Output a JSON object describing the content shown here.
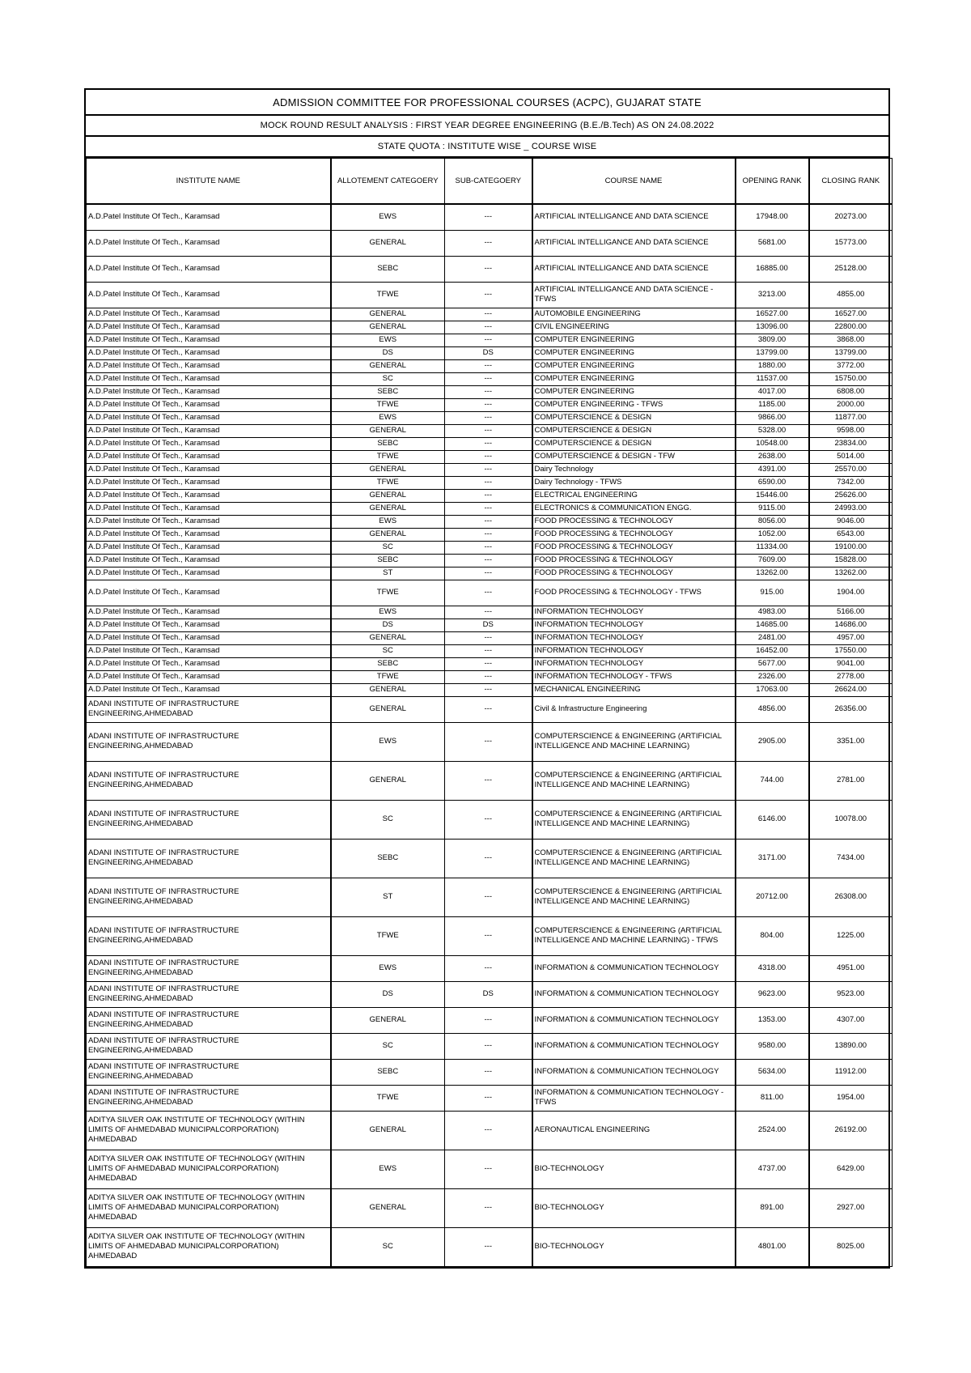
{
  "header": {
    "title": "ADMISSION COMMITTEE FOR PROFESSIONAL COURSES (ACPC), GUJARAT STATE",
    "subtitle": "MOCK ROUND RESULT ANALYSIS : FIRST YEAR DEGREE ENGINEERING (B.E./B.Tech) AS ON 24.08.2022",
    "quota": "STATE QUOTA : INSTITUTE WISE _ COURSE WISE"
  },
  "table": {
    "columns": [
      "INSTITUTE NAME",
      "ALLOTEMENT CATEGOERY",
      "SUB-CATEGOERY",
      "COURSE NAME",
      "OPENING RANK",
      "CLOSING RANK"
    ],
    "rows": [
      {
        "institute": "A.D.Patel Institute Of Tech., Karamsad",
        "category": "EWS",
        "sub": "---",
        "course": "ARTIFICIAL INTELLIGANCE AND DATA SCIENCE",
        "opening": "17948.00",
        "closing": "20273.00"
      },
      {
        "institute": "A.D.Patel Institute Of Tech., Karamsad",
        "category": "GENERAL",
        "sub": "---",
        "course": "ARTIFICIAL INTELLIGANCE AND DATA SCIENCE",
        "opening": "5681.00",
        "closing": "15773.00"
      },
      {
        "institute": "A.D.Patel Institute Of Tech., Karamsad",
        "category": "SEBC",
        "sub": "---",
        "course": "ARTIFICIAL INTELLIGANCE AND DATA SCIENCE",
        "opening": "16885.00",
        "closing": "25128.00"
      },
      {
        "institute": "A.D.Patel Institute Of Tech., Karamsad",
        "category": "TFWE",
        "sub": "---",
        "course": "ARTIFICIAL INTELLIGANCE AND DATA SCIENCE - TFWS",
        "opening": "3213.00",
        "closing": "4855.00"
      },
      {
        "institute": "A.D.Patel Institute Of Tech., Karamsad",
        "category": "GENERAL",
        "sub": "---",
        "course": "AUTOMOBILE ENGINEERING",
        "opening": "16527.00",
        "closing": "16527.00"
      },
      {
        "institute": "A.D.Patel Institute Of Tech., Karamsad",
        "category": "GENERAL",
        "sub": "---",
        "course": "CIVIL ENGINEERING",
        "opening": "13096.00",
        "closing": "22800.00"
      },
      {
        "institute": "A.D.Patel Institute Of Tech., Karamsad",
        "category": "EWS",
        "sub": "---",
        "course": "COMPUTER ENGINEERING",
        "opening": "3809.00",
        "closing": "3868.00"
      },
      {
        "institute": "A.D.Patel Institute Of Tech., Karamsad",
        "category": "DS",
        "sub": "DS",
        "course": "COMPUTER ENGINEERING",
        "opening": "13799.00",
        "closing": "13799.00"
      },
      {
        "institute": "A.D.Patel Institute Of Tech., Karamsad",
        "category": "GENERAL",
        "sub": "---",
        "course": "COMPUTER ENGINEERING",
        "opening": "1880.00",
        "closing": "3772.00"
      },
      {
        "institute": "A.D.Patel Institute Of Tech., Karamsad",
        "category": "SC",
        "sub": "---",
        "course": "COMPUTER ENGINEERING",
        "opening": "11537.00",
        "closing": "15750.00"
      },
      {
        "institute": "A.D.Patel Institute Of Tech., Karamsad",
        "category": "SEBC",
        "sub": "---",
        "course": "COMPUTER ENGINEERING",
        "opening": "4017.00",
        "closing": "6808.00"
      },
      {
        "institute": "A.D.Patel Institute Of Tech., Karamsad",
        "category": "TFWE",
        "sub": "---",
        "course": "COMPUTER ENGINEERING - TFWS",
        "opening": "1185.00",
        "closing": "2000.00"
      },
      {
        "institute": "A.D.Patel Institute Of Tech., Karamsad",
        "category": "EWS",
        "sub": "---",
        "course": "COMPUTERSCIENCE & DESIGN",
        "opening": "9866.00",
        "closing": "11877.00"
      },
      {
        "institute": "A.D.Patel Institute Of Tech., Karamsad",
        "category": "GENERAL",
        "sub": "---",
        "course": "COMPUTERSCIENCE & DESIGN",
        "opening": "5328.00",
        "closing": "9598.00"
      },
      {
        "institute": "A.D.Patel Institute Of Tech., Karamsad",
        "category": "SEBC",
        "sub": "---",
        "course": "COMPUTERSCIENCE & DESIGN",
        "opening": "10548.00",
        "closing": "23834.00"
      },
      {
        "institute": "A.D.Patel Institute Of Tech., Karamsad",
        "category": "TFWE",
        "sub": "---",
        "course": "COMPUTERSCIENCE & DESIGN - TFW",
        "opening": "2638.00",
        "closing": "5014.00"
      },
      {
        "institute": "A.D.Patel Institute Of Tech., Karamsad",
        "category": "GENERAL",
        "sub": "---",
        "course": "Dairy Technology",
        "opening": "4391.00",
        "closing": "25570.00"
      },
      {
        "institute": "A.D.Patel Institute Of Tech., Karamsad",
        "category": "TFWE",
        "sub": "---",
        "course": "Dairy Technology - TFWS",
        "opening": "6590.00",
        "closing": "7342.00"
      },
      {
        "institute": "A.D.Patel Institute Of Tech., Karamsad",
        "category": "GENERAL",
        "sub": "---",
        "course": "ELECTRICAL ENGINEERING",
        "opening": "15446.00",
        "closing": "25626.00"
      },
      {
        "institute": "A.D.Patel Institute Of Tech., Karamsad",
        "category": "GENERAL",
        "sub": "---",
        "course": "ELECTRONICS & COMMUNICATION ENGG.",
        "opening": "9115.00",
        "closing": "24993.00"
      },
      {
        "institute": "A.D.Patel Institute Of Tech., Karamsad",
        "category": "EWS",
        "sub": "---",
        "course": "FOOD PROCESSING & TECHNOLOGY",
        "opening": "8056.00",
        "closing": "9046.00"
      },
      {
        "institute": "A.D.Patel Institute Of Tech., Karamsad",
        "category": "GENERAL",
        "sub": "---",
        "course": "FOOD PROCESSING & TECHNOLOGY",
        "opening": "1052.00",
        "closing": "6543.00"
      },
      {
        "institute": "A.D.Patel Institute Of Tech., Karamsad",
        "category": "SC",
        "sub": "---",
        "course": "FOOD PROCESSING & TECHNOLOGY",
        "opening": "11334.00",
        "closing": "19100.00"
      },
      {
        "institute": "A.D.Patel Institute Of Tech., Karamsad",
        "category": "SEBC",
        "sub": "---",
        "course": "FOOD PROCESSING & TECHNOLOGY",
        "opening": "7609.00",
        "closing": "15828.00"
      },
      {
        "institute": "A.D.Patel Institute Of Tech., Karamsad",
        "category": "ST",
        "sub": "---",
        "course": "FOOD PROCESSING & TECHNOLOGY",
        "opening": "13262.00",
        "closing": "13262.00"
      },
      {
        "institute": "A.D.Patel Institute Of Tech., Karamsad",
        "category": "TFWE",
        "sub": "---",
        "course": "FOOD PROCESSING & TECHNOLOGY - TFWS",
        "opening": "915.00",
        "closing": "1904.00"
      },
      {
        "institute": "A.D.Patel Institute Of Tech., Karamsad",
        "category": "EWS",
        "sub": "---",
        "course": "INFORMATION TECHNOLOGY",
        "opening": "4983.00",
        "closing": "5166.00"
      },
      {
        "institute": "A.D.Patel Institute Of Tech., Karamsad",
        "category": "DS",
        "sub": "DS",
        "course": "INFORMATION TECHNOLOGY",
        "opening": "14685.00",
        "closing": "14686.00"
      },
      {
        "institute": "A.D.Patel Institute Of Tech., Karamsad",
        "category": "GENERAL",
        "sub": "---",
        "course": "INFORMATION TECHNOLOGY",
        "opening": "2481.00",
        "closing": "4957.00"
      },
      {
        "institute": "A.D.Patel Institute Of Tech., Karamsad",
        "category": "SC",
        "sub": "---",
        "course": "INFORMATION TECHNOLOGY",
        "opening": "16452.00",
        "closing": "17550.00"
      },
      {
        "institute": "A.D.Patel Institute Of Tech., Karamsad",
        "category": "SEBC",
        "sub": "---",
        "course": "INFORMATION TECHNOLOGY",
        "opening": "5677.00",
        "closing": "9041.00"
      },
      {
        "institute": "A.D.Patel Institute Of Tech., Karamsad",
        "category": "TFWE",
        "sub": "---",
        "course": "INFORMATION TECHNOLOGY - TFWS",
        "opening": "2326.00",
        "closing": "2778.00"
      },
      {
        "institute": "A.D.Patel Institute Of Tech., Karamsad",
        "category": "GENERAL",
        "sub": "---",
        "course": "MECHANICAL ENGINEERING",
        "opening": "17063.00",
        "closing": "26624.00"
      },
      {
        "institute": "ADANI INSTITUTE OF INFRASTRUCTURE ENGINEERING,AHMEDABAD",
        "category": "GENERAL",
        "sub": "---",
        "course": "Civil & Infrastructure Engineering",
        "opening": "4856.00",
        "closing": "26356.00"
      },
      {
        "institute": "ADANI INSTITUTE OF INFRASTRUCTURE ENGINEERING,AHMEDABAD",
        "category": "EWS",
        "sub": "---",
        "course": "COMPUTERSCIENCE & ENGINEERING (ARTIFICIAL INTELLIGENCE AND MACHINE LEARNING)",
        "opening": "2905.00",
        "closing": "3351.00"
      },
      {
        "institute": "ADANI INSTITUTE OF INFRASTRUCTURE ENGINEERING,AHMEDABAD",
        "category": "GENERAL",
        "sub": "---",
        "course": "COMPUTERSCIENCE & ENGINEERING (ARTIFICIAL INTELLIGENCE AND MACHINE LEARNING)",
        "opening": "744.00",
        "closing": "2781.00"
      },
      {
        "institute": "ADANI INSTITUTE OF INFRASTRUCTURE ENGINEERING,AHMEDABAD",
        "category": "SC",
        "sub": "---",
        "course": "COMPUTERSCIENCE & ENGINEERING (ARTIFICIAL INTELLIGENCE AND MACHINE LEARNING)",
        "opening": "6146.00",
        "closing": "10078.00"
      },
      {
        "institute": "ADANI INSTITUTE OF INFRASTRUCTURE ENGINEERING,AHMEDABAD",
        "category": "SEBC",
        "sub": "---",
        "course": "COMPUTERSCIENCE & ENGINEERING (ARTIFICIAL INTELLIGENCE AND MACHINE LEARNING)",
        "opening": "3171.00",
        "closing": "7434.00"
      },
      {
        "institute": "ADANI INSTITUTE OF INFRASTRUCTURE ENGINEERING,AHMEDABAD",
        "category": "ST",
        "sub": "---",
        "course": "COMPUTERSCIENCE & ENGINEERING (ARTIFICIAL INTELLIGENCE AND MACHINE LEARNING)",
        "opening": "20712.00",
        "closing": "26308.00"
      },
      {
        "institute": "ADANI INSTITUTE OF INFRASTRUCTURE ENGINEERING,AHMEDABAD",
        "category": "TFWE",
        "sub": "---",
        "course": "COMPUTERSCIENCE & ENGINEERING (ARTIFICIAL INTELLIGENCE AND MACHINE LEARNING) - TFWS",
        "opening": "804.00",
        "closing": "1225.00"
      },
      {
        "institute": "ADANI INSTITUTE OF INFRASTRUCTURE ENGINEERING,AHMEDABAD",
        "category": "EWS",
        "sub": "---",
        "course": "INFORMATION & COMMUNICATION TECHNOLOGY",
        "opening": "4318.00",
        "closing": "4951.00"
      },
      {
        "institute": "ADANI INSTITUTE OF INFRASTRUCTURE ENGINEERING,AHMEDABAD",
        "category": "DS",
        "sub": "DS",
        "course": "INFORMATION & COMMUNICATION TECHNOLOGY",
        "opening": "9623.00",
        "closing": "9523.00"
      },
      {
        "institute": "ADANI INSTITUTE OF INFRASTRUCTURE ENGINEERING,AHMEDABAD",
        "category": "GENERAL",
        "sub": "---",
        "course": "INFORMATION & COMMUNICATION TECHNOLOGY",
        "opening": "1353.00",
        "closing": "4307.00"
      },
      {
        "institute": "ADANI INSTITUTE OF INFRASTRUCTURE ENGINEERING,AHMEDABAD",
        "category": "SC",
        "sub": "---",
        "course": "INFORMATION & COMMUNICATION TECHNOLOGY",
        "opening": "9580.00",
        "closing": "13890.00"
      },
      {
        "institute": "ADANI INSTITUTE OF INFRASTRUCTURE ENGINEERING,AHMEDABAD",
        "category": "SEBC",
        "sub": "---",
        "course": "INFORMATION & COMMUNICATION TECHNOLOGY",
        "opening": "5634.00",
        "closing": "11912.00"
      },
      {
        "institute": "ADANI INSTITUTE OF INFRASTRUCTURE ENGINEERING,AHMEDABAD",
        "category": "TFWE",
        "sub": "---",
        "course": "INFORMATION & COMMUNICATION TECHNOLOGY - TFWS",
        "opening": "811.00",
        "closing": "1954.00"
      },
      {
        "institute": "ADITYA SILVER OAK INSTITUTE OF TECHNOLOGY (WITHIN LIMITS OF AHMEDABAD MUNICIPALCORPORATION) AHMEDABAD",
        "category": "GENERAL",
        "sub": "---",
        "course": "AERONAUTICAL ENGINEERING",
        "opening": "2524.00",
        "closing": "26192.00"
      },
      {
        "institute": "ADITYA SILVER OAK INSTITUTE OF TECHNOLOGY (WITHIN LIMITS OF AHMEDABAD MUNICIPALCORPORATION) AHMEDABAD",
        "category": "EWS",
        "sub": "---",
        "course": "BIO-TECHNOLOGY",
        "opening": "4737.00",
        "closing": "6429.00"
      },
      {
        "institute": "ADITYA SILVER OAK INSTITUTE OF TECHNOLOGY (WITHIN LIMITS OF AHMEDABAD MUNICIPALCORPORATION) AHMEDABAD",
        "category": "GENERAL",
        "sub": "---",
        "course": "BIO-TECHNOLOGY",
        "opening": "891.00",
        "closing": "2927.00"
      },
      {
        "institute": "ADITYA SILVER OAK INSTITUTE OF TECHNOLOGY (WITHIN LIMITS OF AHMEDABAD MUNICIPALCORPORATION) AHMEDABAD",
        "category": "SC",
        "sub": "---",
        "course": "BIO-TECHNOLOGY",
        "opening": "4801.00",
        "closing": "8025.00"
      }
    ]
  }
}
